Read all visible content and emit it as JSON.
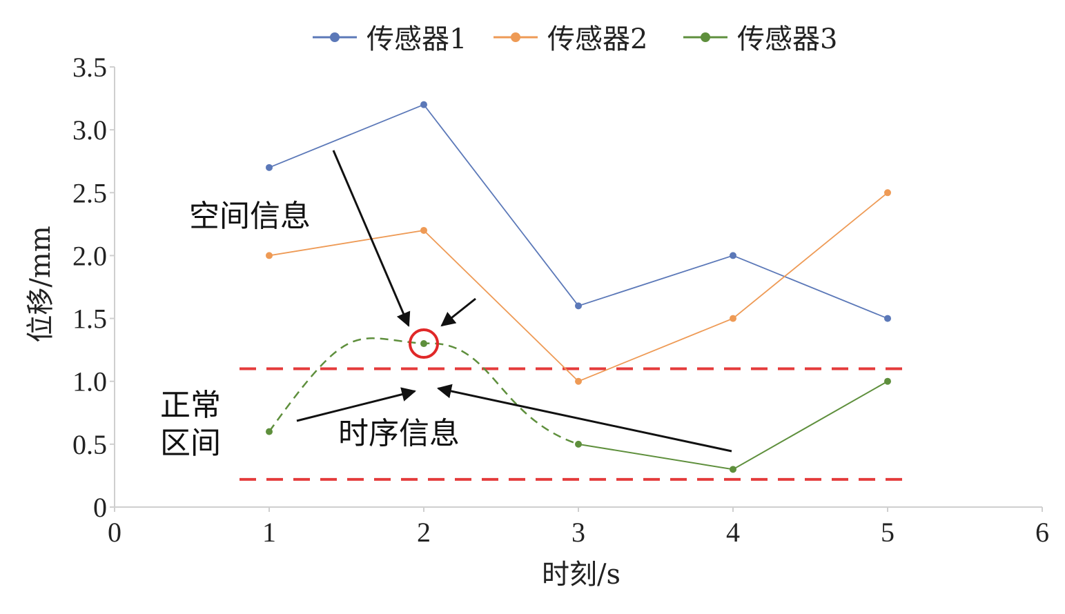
{
  "chart_data": {
    "type": "line",
    "xlabel": "时刻/s",
    "ylabel": "位移/mm",
    "xlim": [
      0,
      6
    ],
    "ylim": [
      0,
      3.5
    ],
    "x_ticks": [
      "0",
      "1",
      "2",
      "3",
      "4",
      "5",
      "6"
    ],
    "y_ticks": [
      "0",
      "0.5",
      "1.0",
      "1.5",
      "2.0",
      "2.5",
      "3.0",
      "3.5"
    ],
    "grid": false,
    "legend_position": "top",
    "series": [
      {
        "name": "传感器1",
        "color": "#5b78b8",
        "x": [
          1,
          2,
          3,
          4,
          5
        ],
        "y": [
          2.7,
          3.2,
          1.6,
          2.0,
          1.5
        ]
      },
      {
        "name": "传感器2",
        "color": "#ee9a55",
        "x": [
          1,
          2,
          3,
          4,
          5
        ],
        "y": [
          2.0,
          2.2,
          1.0,
          1.5,
          2.5
        ]
      },
      {
        "name": "传感器3",
        "color": "#5e8f3c",
        "x": [
          1,
          2,
          3,
          4,
          5
        ],
        "y": [
          0.6,
          1.3,
          0.5,
          0.3,
          1.0
        ]
      }
    ],
    "normal_range": {
      "lower": 0.22,
      "upper": 1.1,
      "color": "#e43b3b"
    },
    "annotations": {
      "spatial": "空间信息",
      "temporal": "时序信息",
      "normal_range_line1": "正常",
      "normal_range_line2": "区间"
    },
    "highlight_point": {
      "series": "传感器3",
      "x": 2,
      "y": 1.3,
      "color": "#e02828"
    }
  }
}
